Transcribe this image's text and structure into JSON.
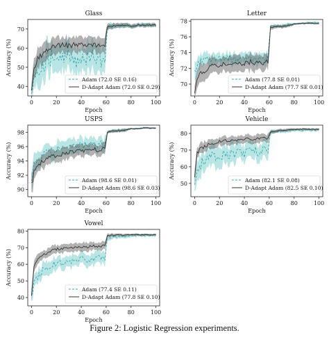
{
  "caption": "Figure 2: Logistic Regression experiments.",
  "colors": {
    "adam": "#7fcfd0",
    "dadapt": "#555555"
  },
  "chart_data": [
    {
      "type": "line",
      "title": "Glass",
      "xlabel": "Epoch",
      "ylabel": "Accuracy (%)",
      "xlim": [
        -3,
        103
      ],
      "ylim": [
        35,
        75
      ],
      "xticks": [
        0,
        20,
        40,
        60,
        80,
        100
      ],
      "yticks": [
        40,
        50,
        60,
        70
      ],
      "legend": "lower-right",
      "series": [
        {
          "name": "Adam (72.0 SE 0.16)",
          "key": "adam",
          "style": "dashed",
          "x": [
            0,
            2,
            5,
            10,
            15,
            20,
            25,
            30,
            35,
            40,
            45,
            50,
            55,
            59,
            61,
            65,
            70,
            75,
            80,
            85,
            90,
            95,
            100
          ],
          "y": [
            36,
            44,
            50,
            52,
            55,
            57,
            54,
            56,
            53,
            55,
            54,
            56,
            52,
            55,
            71,
            71.5,
            71.5,
            72,
            71.5,
            72,
            72,
            72,
            72
          ],
          "band": [
            3,
            6,
            8,
            8,
            8,
            7,
            8,
            7,
            8,
            7,
            7,
            7,
            8,
            7,
            1.5,
            1.5,
            1.2,
            1.2,
            1,
            1,
            1,
            1,
            1
          ]
        },
        {
          "name": "D-Adapt Adam (72.0 SE 0.29)",
          "key": "dadapt",
          "style": "solid",
          "x": [
            0,
            2,
            5,
            10,
            15,
            20,
            25,
            30,
            35,
            40,
            45,
            50,
            55,
            59,
            61,
            65,
            70,
            75,
            80,
            85,
            90,
            95,
            100
          ],
          "y": [
            38,
            48,
            55,
            57,
            60,
            61,
            62,
            61,
            62,
            62,
            61,
            62,
            61,
            62,
            71,
            71.5,
            72,
            72,
            71.5,
            72,
            72,
            72,
            72
          ],
          "band": [
            3,
            5,
            5,
            5,
            4,
            4,
            4,
            4,
            4,
            4,
            4,
            4,
            4,
            4,
            1.5,
            1.5,
            1.2,
            1.2,
            1,
            1,
            1,
            1,
            1
          ]
        }
      ]
    },
    {
      "type": "line",
      "title": "Letter",
      "xlabel": "Epoch",
      "ylabel": "Accuracy (%)",
      "xlim": [
        -3,
        103
      ],
      "ylim": [
        68.5,
        78.2
      ],
      "xticks": [
        0,
        20,
        40,
        60,
        80,
        100
      ],
      "yticks": [
        70,
        72,
        74,
        76,
        78
      ],
      "legend": "lower-right",
      "series": [
        {
          "name": "Adam (77.8 SE 0.01)",
          "key": "adam",
          "style": "dashed",
          "x": [
            0,
            2,
            5,
            10,
            15,
            20,
            25,
            30,
            35,
            40,
            45,
            50,
            55,
            59,
            61,
            65,
            70,
            75,
            80,
            85,
            90,
            95,
            100
          ],
          "y": [
            71,
            72.5,
            73,
            73.2,
            73,
            73.2,
            73.3,
            73.1,
            73.2,
            73.3,
            73.2,
            73.1,
            73.3,
            73.2,
            77.3,
            77.4,
            77.4,
            77.5,
            77.7,
            77.7,
            77.8,
            77.8,
            77.8
          ],
          "band": [
            1.5,
            1,
            0.8,
            0.7,
            0.7,
            0.7,
            0.7,
            0.7,
            0.7,
            0.7,
            0.7,
            0.7,
            0.7,
            0.7,
            0.2,
            0.2,
            0.2,
            0.2,
            0.1,
            0.1,
            0.1,
            0.1,
            0.1
          ]
        },
        {
          "name": "D-Adapt Adam (77.7 SE 0.01)",
          "key": "dadapt",
          "style": "solid",
          "x": [
            0,
            2,
            5,
            10,
            15,
            20,
            25,
            30,
            35,
            40,
            45,
            50,
            55,
            59,
            61,
            65,
            70,
            75,
            80,
            85,
            90,
            95,
            100
          ],
          "y": [
            69,
            70.5,
            71.5,
            72,
            72.3,
            72.5,
            72.4,
            72.6,
            72.7,
            72.5,
            72.8,
            72.6,
            72.7,
            72.8,
            77.2,
            77.3,
            77.3,
            77.4,
            77.6,
            77.7,
            77.7,
            77.7,
            77.7
          ],
          "band": [
            1,
            1.2,
            1.2,
            1.1,
            1,
            1,
            1,
            1,
            1,
            1,
            1,
            1,
            1,
            1,
            0.3,
            0.2,
            0.2,
            0.2,
            0.1,
            0.1,
            0.1,
            0.1,
            0.1
          ]
        }
      ]
    },
    {
      "type": "line",
      "title": "USPS",
      "xlabel": "Epoch",
      "ylabel": "Accuracy (%)",
      "xlim": [
        -3,
        103
      ],
      "ylim": [
        89,
        99
      ],
      "xticks": [
        0,
        20,
        40,
        60,
        80,
        100
      ],
      "yticks": [
        90,
        92,
        94,
        96,
        98
      ],
      "legend": "lower-right",
      "series": [
        {
          "name": "Adam (98.6 SE 0.01)",
          "key": "adam",
          "style": "dashed",
          "x": [
            0,
            2,
            5,
            10,
            15,
            20,
            25,
            30,
            35,
            40,
            45,
            50,
            55,
            59,
            61,
            65,
            70,
            75,
            80,
            85,
            90,
            95,
            100
          ],
          "y": [
            91,
            93.5,
            94.5,
            95,
            95.2,
            95.5,
            95.8,
            96,
            96.2,
            96,
            96.3,
            96.1,
            96.4,
            96.2,
            98.1,
            98.2,
            98.3,
            98.3,
            98.5,
            98.5,
            98.6,
            98.6,
            98.6
          ],
          "band": [
            1.5,
            1.2,
            1,
            1,
            1,
            1,
            1,
            1,
            1,
            1,
            1,
            1,
            1,
            1,
            0.2,
            0.2,
            0.2,
            0.2,
            0.1,
            0.1,
            0.1,
            0.1,
            0.1
          ]
        },
        {
          "name": "D-Adapt Adam (98.6 SE 0.03)",
          "key": "dadapt",
          "style": "solid",
          "x": [
            0,
            2,
            5,
            10,
            15,
            20,
            25,
            30,
            35,
            40,
            45,
            50,
            55,
            59,
            61,
            65,
            70,
            75,
            80,
            85,
            90,
            95,
            100
          ],
          "y": [
            90.5,
            92.5,
            93.5,
            94,
            94.5,
            94.8,
            95,
            95.2,
            95.3,
            95.5,
            95.4,
            95.6,
            95.5,
            95.7,
            98,
            98.1,
            98.2,
            98.3,
            98.5,
            98.5,
            98.6,
            98.6,
            98.6
          ],
          "band": [
            1.5,
            1.2,
            1,
            1,
            0.9,
            0.9,
            0.9,
            0.8,
            0.8,
            0.8,
            0.8,
            0.8,
            0.8,
            0.8,
            0.2,
            0.2,
            0.2,
            0.2,
            0.1,
            0.1,
            0.1,
            0.1,
            0.1
          ]
        }
      ]
    },
    {
      "type": "line",
      "title": "Vehicle",
      "xlabel": "Epoch",
      "ylabel": "Accuracy (%)",
      "xlim": [
        -3,
        103
      ],
      "ylim": [
        42,
        85
      ],
      "xticks": [
        0,
        20,
        40,
        60,
        80,
        100
      ],
      "yticks": [
        50,
        60,
        70,
        80
      ],
      "legend": "lower-right",
      "series": [
        {
          "name": "Adam (82.1 SE 0.08)",
          "key": "adam",
          "style": "dashed",
          "x": [
            0,
            2,
            5,
            10,
            15,
            20,
            25,
            30,
            35,
            40,
            45,
            50,
            55,
            59,
            61,
            65,
            70,
            75,
            80,
            85,
            90,
            95,
            100
          ],
          "y": [
            48,
            58,
            62,
            64,
            66,
            67,
            68,
            67,
            69,
            68,
            70,
            69,
            70,
            71,
            80,
            81,
            81.5,
            81.5,
            82,
            82,
            82.1,
            82.1,
            82.1
          ],
          "band": [
            5,
            7,
            7,
            6,
            6,
            6,
            6,
            6,
            5,
            5,
            5,
            5,
            5,
            5,
            1.5,
            1,
            1,
            1,
            0.8,
            0.8,
            0.8,
            0.8,
            0.8
          ]
        },
        {
          "name": "D-Adapt Adam (82.5 SE 0.10)",
          "key": "dadapt",
          "style": "solid",
          "x": [
            0,
            2,
            5,
            10,
            15,
            20,
            25,
            30,
            35,
            40,
            45,
            50,
            55,
            59,
            61,
            65,
            70,
            75,
            80,
            85,
            90,
            95,
            100
          ],
          "y": [
            55,
            68,
            71,
            73,
            74,
            75,
            75.5,
            76,
            76,
            76.5,
            76.5,
            77,
            77,
            77,
            81,
            81.5,
            82,
            82,
            82.3,
            82.5,
            82.5,
            82.5,
            82.5
          ],
          "band": [
            4,
            3,
            3,
            3,
            2.5,
            2.5,
            2.5,
            2.5,
            2.5,
            2.5,
            2.5,
            2.5,
            2.5,
            2.5,
            1,
            1,
            0.8,
            0.8,
            0.6,
            0.6,
            0.6,
            0.6,
            0.6
          ]
        }
      ]
    },
    {
      "type": "line",
      "title": "Vowel",
      "xlabel": "Epoch",
      "ylabel": "Accuracy (%)",
      "xlim": [
        -3,
        103
      ],
      "ylim": [
        35,
        81
      ],
      "xticks": [
        0,
        20,
        40,
        60,
        80,
        100
      ],
      "yticks": [
        40,
        50,
        60,
        70,
        80
      ],
      "legend": "lower-right",
      "series": [
        {
          "name": "Adam (77.4 SE 0.11)",
          "key": "adam",
          "style": "dashed",
          "x": [
            0,
            2,
            5,
            10,
            15,
            20,
            25,
            30,
            35,
            40,
            45,
            50,
            55,
            59,
            61,
            65,
            70,
            75,
            80,
            85,
            90,
            95,
            100
          ],
          "y": [
            40,
            48,
            53,
            57,
            59,
            60,
            61,
            62,
            62,
            63,
            63,
            63,
            64,
            64,
            76,
            76.5,
            77,
            76,
            77,
            77.2,
            77.4,
            77.4,
            77.4
          ],
          "band": [
            3,
            4,
            4,
            4,
            4,
            3.5,
            3.5,
            3.5,
            3.5,
            3.5,
            3.5,
            3.5,
            3.5,
            3.5,
            1.5,
            1.2,
            1,
            1,
            0.8,
            0.8,
            0.8,
            0.8,
            0.8
          ]
        },
        {
          "name": "D-Adapt Adam (77.8 SE 0.10)",
          "key": "dadapt",
          "style": "solid",
          "x": [
            0,
            2,
            5,
            10,
            15,
            20,
            25,
            30,
            35,
            40,
            45,
            50,
            55,
            59,
            61,
            65,
            70,
            75,
            80,
            85,
            90,
            95,
            100
          ],
          "y": [
            42,
            58,
            63,
            66,
            68,
            69,
            69.5,
            70,
            70,
            70.5,
            70.5,
            71,
            71,
            71,
            77,
            77.5,
            77.8,
            77.5,
            77.8,
            77.8,
            77.8,
            77.8,
            77.8
          ],
          "band": [
            4,
            3,
            3,
            2.5,
            2.5,
            2.5,
            2.5,
            2.5,
            2.5,
            2.5,
            2.5,
            2.5,
            2.5,
            2.5,
            1,
            1,
            0.8,
            0.8,
            0.6,
            0.6,
            0.6,
            0.6,
            0.6
          ]
        }
      ]
    }
  ]
}
